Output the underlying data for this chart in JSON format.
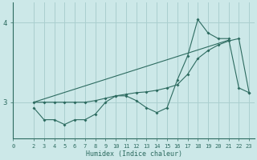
{
  "xlabel": "Humidex (Indice chaleur)",
  "bg_color": "#cce8e8",
  "line_color": "#2d6b60",
  "grid_color": "#aacfcf",
  "x_ticks": [
    0,
    2,
    3,
    4,
    5,
    6,
    7,
    8,
    9,
    10,
    11,
    12,
    13,
    14,
    15,
    16,
    17,
    18,
    19,
    20,
    21,
    22,
    23
  ],
  "xlim": [
    0,
    23.5
  ],
  "ylim": [
    2.55,
    4.25
  ],
  "y_ticks": [
    3,
    4
  ],
  "series1_x": [
    2,
    3,
    4,
    5,
    6,
    7,
    8,
    9,
    10,
    11,
    12,
    13,
    14,
    15,
    16,
    17,
    18,
    19,
    20,
    21,
    22,
    23
  ],
  "series1_y": [
    2.93,
    2.78,
    2.78,
    2.72,
    2.78,
    2.78,
    2.85,
    3.0,
    3.08,
    3.08,
    3.02,
    2.93,
    2.87,
    2.93,
    3.28,
    3.58,
    4.04,
    3.87,
    3.8,
    3.8,
    3.18,
    3.12
  ],
  "series2_x": [
    2,
    3,
    4,
    5,
    6,
    7,
    8,
    9,
    10,
    11,
    12,
    13,
    14,
    15,
    16,
    17,
    18,
    19,
    20,
    21,
    22,
    23
  ],
  "series2_y": [
    3.0,
    3.0,
    3.0,
    3.0,
    3.0,
    3.0,
    3.02,
    3.05,
    3.08,
    3.1,
    3.12,
    3.13,
    3.15,
    3.18,
    3.22,
    3.35,
    3.55,
    3.65,
    3.72,
    3.77,
    3.8,
    3.12
  ],
  "trend_x": [
    2,
    21
  ],
  "trend_y": [
    3.0,
    3.78
  ]
}
